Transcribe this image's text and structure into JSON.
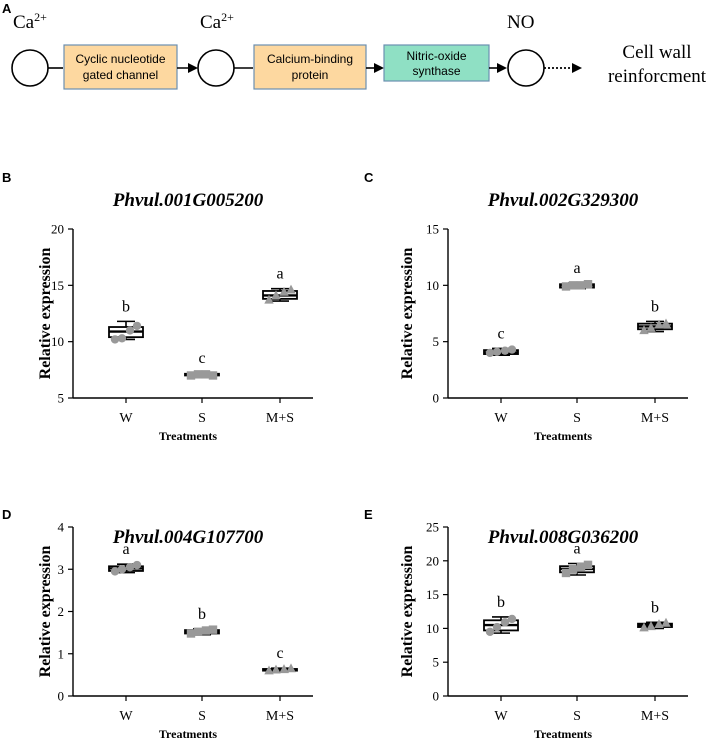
{
  "pathway": {
    "panel": "A",
    "ion_1": "Ca",
    "ion_1_sup": "2+",
    "node_1": [
      "Cyclic nucleotide",
      "gated channel"
    ],
    "ion_2": "Ca",
    "ion_2_sup": "2+",
    "node_2": [
      "Calcium-binding",
      "protein"
    ],
    "node_3": [
      "Nitric-oxide",
      "synthase"
    ],
    "signal": "NO",
    "outcome": [
      "Cell wall",
      "reinforcment"
    ],
    "colors": {
      "node_1": "#fdd8a0",
      "node_2": "#fdd8a0",
      "node_3": "#8fe0c4",
      "node_border": "#6b8fb0"
    }
  },
  "chart_data": [
    {
      "panel": "B",
      "type": "box",
      "title": "Phvul.001G005200",
      "ylabel": "Relative expression",
      "xlabel": "Treatments",
      "ylim": [
        5,
        20
      ],
      "yticks": [
        "5",
        "10",
        "15",
        "20"
      ],
      "ytick_values": [
        5,
        10,
        15,
        20
      ],
      "categories": [
        "W",
        "S",
        "M+S"
      ],
      "boxes": [
        {
          "min": 10.2,
          "q1": 10.4,
          "median": 10.9,
          "q3": 11.3,
          "max": 11.8
        },
        {
          "min": 6.9,
          "q1": 7.0,
          "median": 7.1,
          "q3": 7.15,
          "max": 7.2
        },
        {
          "min": 13.6,
          "q1": 13.8,
          "median": 14.1,
          "q3": 14.5,
          "max": 14.7
        }
      ],
      "points": [
        [
          10.2,
          10.3,
          11.0,
          11.4
        ],
        [
          7.0,
          7.1,
          7.1,
          7.0
        ],
        [
          13.7,
          14.1,
          14.4,
          14.6
        ]
      ],
      "letters": [
        "b",
        "c",
        "a"
      ]
    },
    {
      "panel": "C",
      "type": "box",
      "title": "Phvul.002G329300",
      "ylabel": "Relative expression",
      "xlabel": "Treatments",
      "ylim": [
        0,
        15
      ],
      "yticks": [
        "0",
        "5",
        "10",
        "15"
      ],
      "ytick_values": [
        0,
        5,
        10,
        15
      ],
      "categories": [
        "W",
        "S",
        "M+S"
      ],
      "boxes": [
        {
          "min": 3.8,
          "q1": 3.9,
          "median": 4.05,
          "q3": 4.25,
          "max": 4.4
        },
        {
          "min": 9.7,
          "q1": 9.8,
          "median": 10.0,
          "q3": 10.1,
          "max": 10.2
        },
        {
          "min": 5.9,
          "q1": 6.1,
          "median": 6.35,
          "q3": 6.6,
          "max": 6.8
        }
      ],
      "points": [
        [
          4.0,
          4.1,
          4.2,
          4.3
        ],
        [
          9.9,
          10.0,
          10.0,
          10.1
        ],
        [
          6.0,
          6.2,
          6.5,
          6.6
        ]
      ],
      "letters": [
        "c",
        "a",
        "b"
      ]
    },
    {
      "panel": "D",
      "type": "box",
      "title": "Phvul.004G107700",
      "ylabel": "Relative expression",
      "xlabel": "Treatments",
      "ylim": [
        0,
        4
      ],
      "yticks": [
        "0",
        "1",
        "2",
        "3",
        "4"
      ],
      "ytick_values": [
        0,
        1,
        2,
        3,
        4
      ],
      "categories": [
        "W",
        "S",
        "M+S"
      ],
      "boxes": [
        {
          "min": 2.92,
          "q1": 2.96,
          "median": 3.02,
          "q3": 3.07,
          "max": 3.12
        },
        {
          "min": 1.45,
          "q1": 1.48,
          "median": 1.52,
          "q3": 1.56,
          "max": 1.59
        },
        {
          "min": 0.58,
          "q1": 0.6,
          "median": 0.62,
          "q3": 0.64,
          "max": 0.66
        }
      ],
      "points": [
        [
          2.95,
          3.0,
          3.05,
          3.1
        ],
        [
          1.48,
          1.52,
          1.55,
          1.57
        ],
        [
          0.6,
          0.62,
          0.63,
          0.65
        ]
      ],
      "letters": [
        "a",
        "b",
        "c"
      ]
    },
    {
      "panel": "E",
      "type": "box",
      "title": "Phvul.008G036200",
      "ylabel": "Relative expression",
      "xlabel": "Treatments",
      "ylim": [
        0,
        25
      ],
      "yticks": [
        "0",
        "5",
        "10",
        "15",
        "20",
        "25"
      ],
      "ytick_values": [
        0,
        5,
        10,
        15,
        20,
        25
      ],
      "categories": [
        "W",
        "S",
        "M+S"
      ],
      "boxes": [
        {
          "min": 9.3,
          "q1": 9.7,
          "median": 10.5,
          "q3": 11.2,
          "max": 11.7
        },
        {
          "min": 17.9,
          "q1": 18.3,
          "median": 18.8,
          "q3": 19.2,
          "max": 19.6
        },
        {
          "min": 10.0,
          "q1": 10.2,
          "median": 10.4,
          "q3": 10.7,
          "max": 10.9
        }
      ],
      "points": [
        [
          9.5,
          10.2,
          10.9,
          11.4
        ],
        [
          18.2,
          18.7,
          19.1,
          19.4
        ],
        [
          10.1,
          10.3,
          10.6,
          10.8
        ]
      ],
      "letters": [
        "b",
        "a",
        "b"
      ]
    }
  ]
}
